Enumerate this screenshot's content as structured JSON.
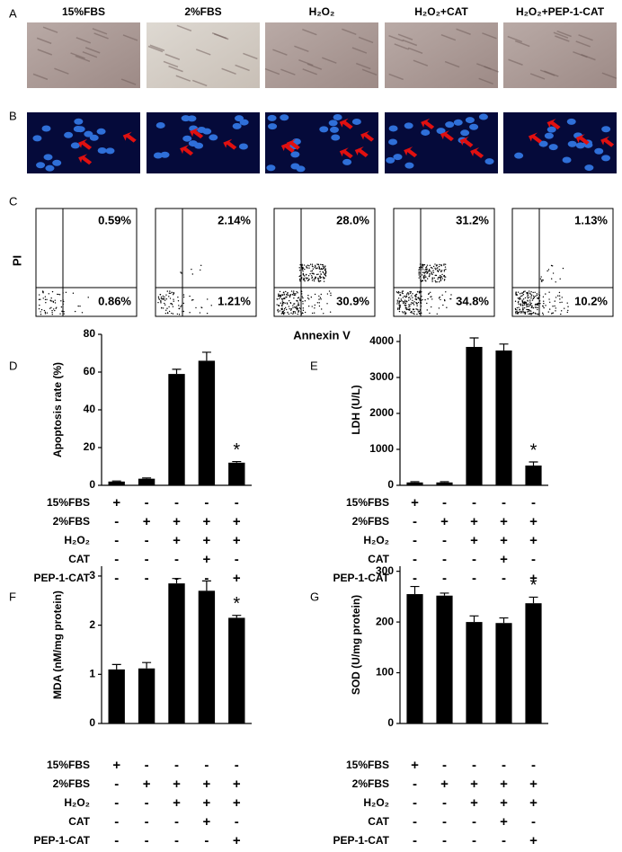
{
  "panel_labels": [
    "A",
    "B",
    "C",
    "D",
    "E",
    "F",
    "G"
  ],
  "column_headers": [
    "15%FBS",
    "2%FBS",
    "H₂O₂",
    "H₂O₂+CAT",
    "H₂O₂+PEP-1-CAT"
  ],
  "flow": {
    "y_label": "PI",
    "x_label": "Annexin V",
    "plots": [
      {
        "upper": "0.59%",
        "lower": "0.86%"
      },
      {
        "upper": "2.14%",
        "lower": "1.21%"
      },
      {
        "upper": "28.0%",
        "lower": "30.9%"
      },
      {
        "upper": "31.2%",
        "lower": "34.8%"
      },
      {
        "upper": "1.13%",
        "lower": "10.2%"
      }
    ]
  },
  "conditions": {
    "rows": [
      "15%FBS",
      "2%FBS",
      "H₂O₂",
      "CAT",
      "PEP-1-CAT"
    ],
    "signs": [
      [
        "+",
        "-",
        "-",
        "-",
        "-"
      ],
      [
        "-",
        "+",
        "+",
        "+",
        "+"
      ],
      [
        "-",
        "-",
        "+",
        "+",
        "+"
      ],
      [
        "-",
        "-",
        "-",
        "+",
        "-"
      ],
      [
        "-",
        "-",
        "-",
        "-",
        "+"
      ]
    ]
  },
  "chart_data": [
    {
      "type": "bar",
      "ylabel": "Apoptosis rate (%)",
      "categories": [
        null,
        null,
        null,
        null,
        null
      ],
      "values": [
        2,
        3.5,
        59,
        66,
        12
      ],
      "errors": [
        0.3,
        0.4,
        2.5,
        4.5,
        0.6
      ],
      "ylim": [
        0,
        80
      ],
      "yticks": [
        0,
        20,
        40,
        60,
        80
      ],
      "annotation": "*",
      "color": "#000000"
    },
    {
      "type": "bar",
      "ylabel": "LDH (U/L)",
      "categories": [
        null,
        null,
        null,
        null,
        null
      ],
      "values": [
        80,
        80,
        3850,
        3750,
        550
      ],
      "errors": [
        20,
        20,
        250,
        180,
        100
      ],
      "ylim": [
        0,
        4200
      ],
      "yticks": [
        0,
        1000,
        2000,
        3000,
        4000
      ],
      "annotation": "*",
      "color": "#000000"
    },
    {
      "type": "bar",
      "ylabel": "MDA (nM/mg protein)",
      "categories": [
        null,
        null,
        null,
        null,
        null
      ],
      "values": [
        1.1,
        1.12,
        2.85,
        2.7,
        2.15
      ],
      "errors": [
        0.1,
        0.12,
        0.1,
        0.2,
        0.05
      ],
      "ylim": [
        0,
        3.2
      ],
      "yticks": [
        0,
        1,
        2,
        3
      ],
      "annotation": "*",
      "color": "#000000"
    },
    {
      "type": "bar",
      "ylabel": "SOD (U/mg protein)",
      "categories": [
        null,
        null,
        null,
        null,
        null
      ],
      "values": [
        255,
        252,
        200,
        198,
        237
      ],
      "errors": [
        15,
        5,
        12,
        10,
        12
      ],
      "ylim": [
        0,
        310
      ],
      "yticks": [
        0,
        100,
        200,
        300
      ],
      "annotation": "*",
      "color": "#000000"
    }
  ]
}
